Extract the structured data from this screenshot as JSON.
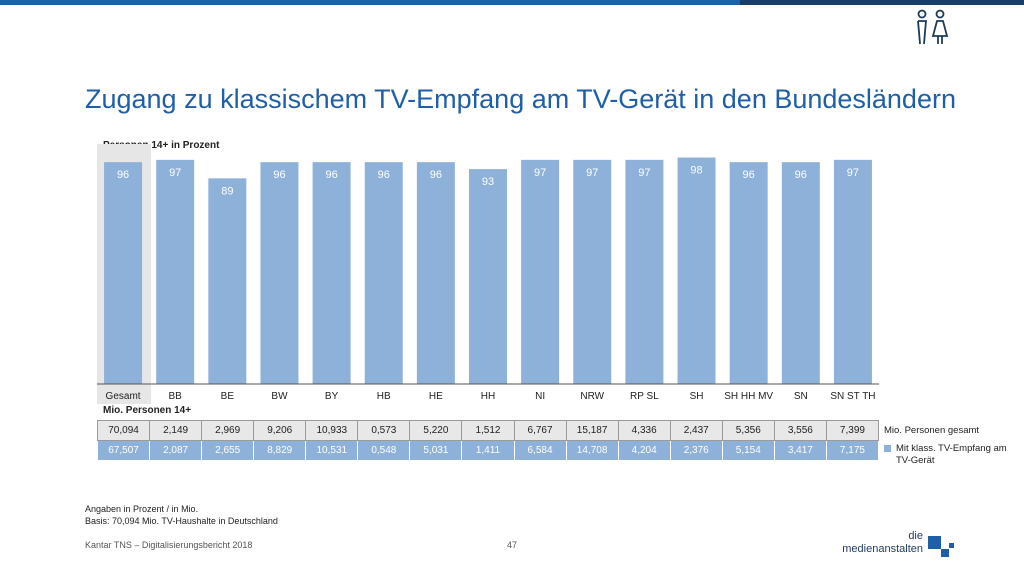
{
  "title": "Zugang zu klassischem TV-Empfang am TV-Gerät in den Bundesländern",
  "subtitle": "Personen 14+ in Prozent",
  "chart_data": {
    "type": "bar",
    "categories": [
      "Gesamt",
      "BB",
      "BE",
      "BW",
      "BY",
      "HB",
      "HE",
      "HH",
      "NI",
      "NRW",
      "RP SL",
      "SH",
      "SH HH MV",
      "SN",
      "SN ST TH"
    ],
    "values": [
      96,
      97,
      89,
      96,
      96,
      96,
      96,
      93,
      97,
      97,
      97,
      98,
      96,
      96,
      97
    ],
    "ylim": [
      0,
      100
    ],
    "bar_color": "#8db1d9",
    "highlight_bg": "#e6e6e6",
    "value_label_color": "#ffffff"
  },
  "table": {
    "heading": "Mio. Personen 14+",
    "row_total": [
      "70,094",
      "2,149",
      "2,969",
      "9,206",
      "10,933",
      "0,573",
      "5,220",
      "1,512",
      "6,767",
      "15,187",
      "4,336",
      "2,437",
      "5,356",
      "3,556",
      "7,399"
    ],
    "row_tv": [
      "67,507",
      "2,087",
      "2,655",
      "8,829",
      "10,531",
      "0,548",
      "5,031",
      "1,411",
      "6,584",
      "14,708",
      "4,204",
      "2,376",
      "5,154",
      "3,417",
      "7,175"
    ]
  },
  "legend": {
    "total_label": "Mio. Personen gesamt",
    "tv_label": "Mit klass. TV-Empfang am TV-Gerät",
    "tv_color": "#8db1d9"
  },
  "footnote": {
    "line1": "Angaben in Prozent / in Mio.",
    "line2": "Basis: 70,094 Mio. TV-Haushalte in Deutschland"
  },
  "footer": {
    "source": "Kantar TNS – Digitalisierungsbericht 2018",
    "page": "47"
  },
  "logo": {
    "line1": "die",
    "line2": "medienanstalten"
  },
  "colors": {
    "accent": "#1f5fa8",
    "accent_dark": "#163e66"
  }
}
